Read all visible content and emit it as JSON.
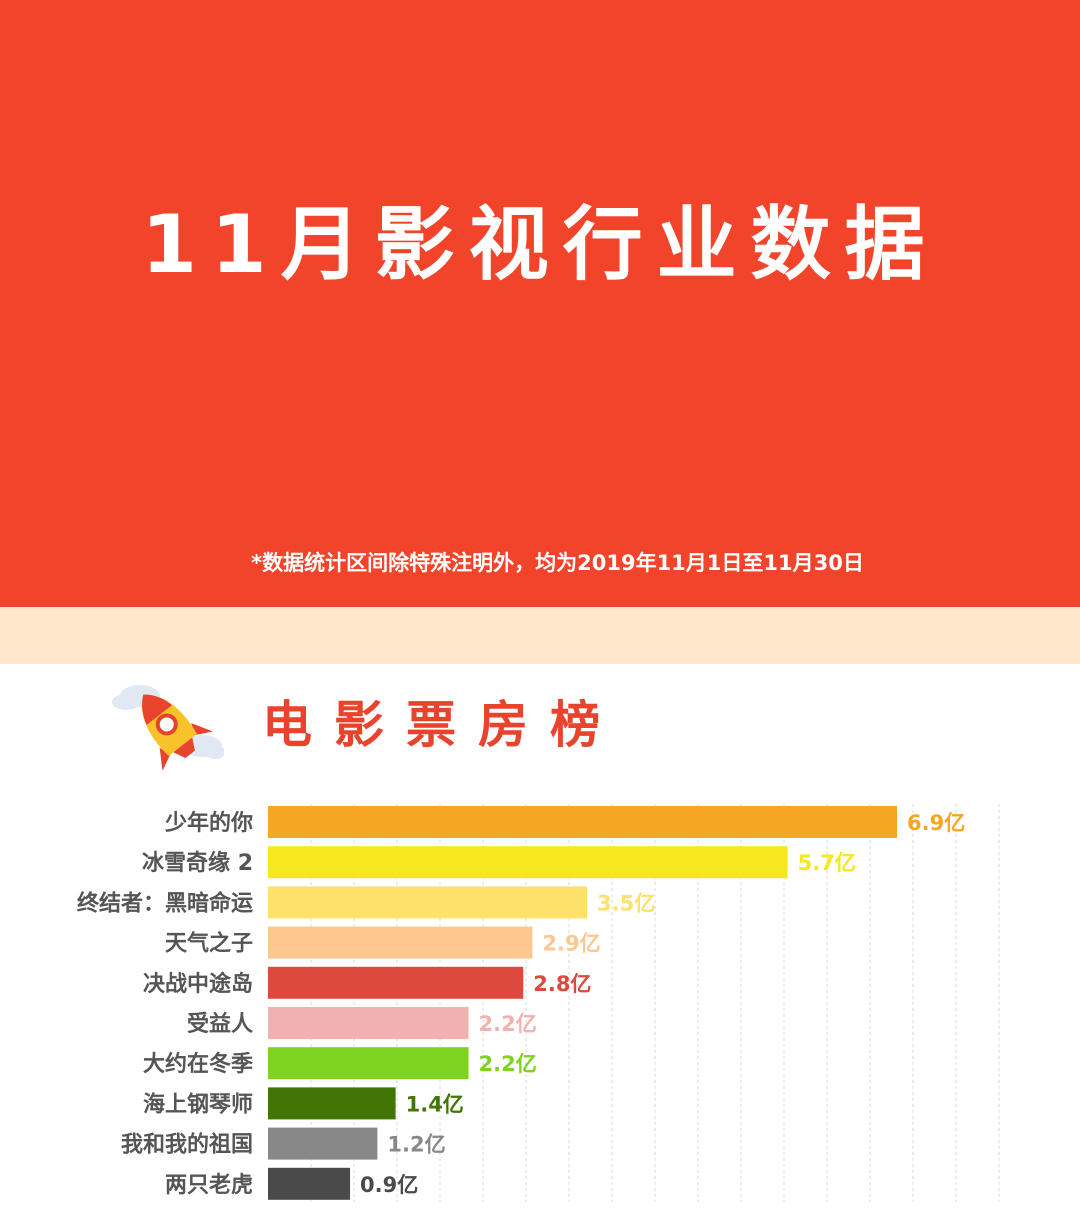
{
  "header": {
    "title": "11月影视行业数据",
    "note": "*数据统计区间除特殊注明外，均为2019年11月1日至11月30日"
  },
  "section": {
    "title": "电影票房榜",
    "icon": "rocket-icon"
  },
  "colors": {
    "hero_bg": "#f2442b",
    "band_bg": "#fde8cc",
    "section_title": "#e8432d"
  },
  "chart_data": {
    "type": "bar",
    "orientation": "horizontal",
    "title": "电影票房榜",
    "unit": "亿",
    "grid": true,
    "categories": [
      "少年的你",
      "冰雪奇缘 2",
      "终结者：黑暗命运",
      "天气之子",
      "决战中途岛",
      "受益人",
      "大约在冬季",
      "海上钢琴师",
      "我和我的祖国",
      "两只老虎"
    ],
    "values": [
      6.9,
      5.7,
      3.5,
      2.9,
      2.8,
      2.2,
      2.2,
      1.4,
      1.2,
      0.9
    ],
    "value_labels": [
      "6.9亿",
      "5.7亿",
      "3.5亿",
      "2.9亿",
      "2.8亿",
      "2.2亿",
      "2.2亿",
      "1.4亿",
      "1.2亿",
      "0.9亿"
    ],
    "colors": [
      "#f5a623",
      "#f6e81d",
      "#fde16a",
      "#fec78f",
      "#dd4a3c",
      "#f1b1b1",
      "#7ed321",
      "#417505",
      "#888888",
      "#4a4a4a"
    ],
    "xlim": [
      0,
      6.9
    ]
  }
}
